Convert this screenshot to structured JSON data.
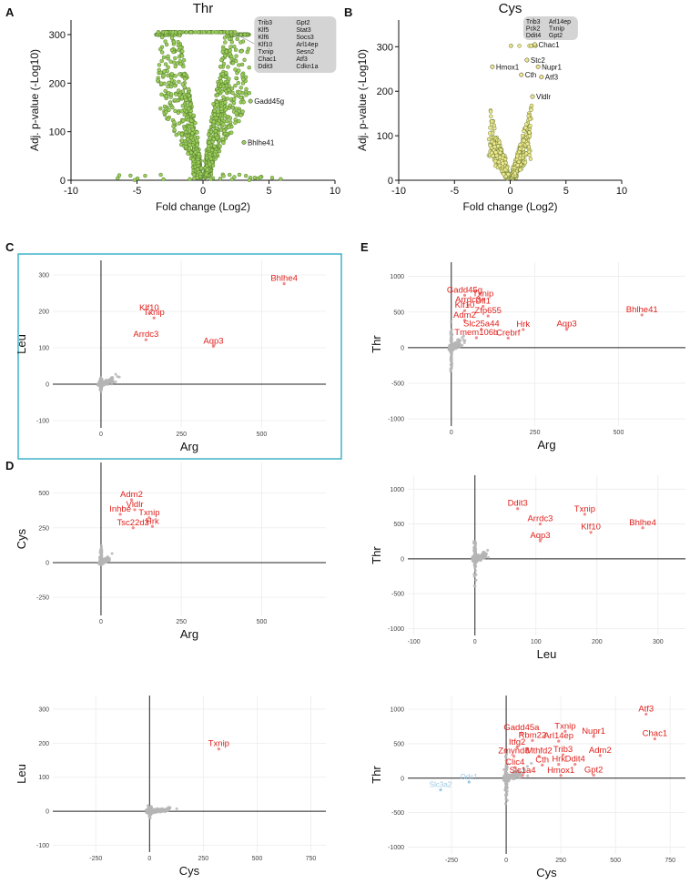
{
  "panels": {
    "A": "A",
    "B": "B",
    "C": "C",
    "D": "D",
    "E": "E"
  },
  "chart_data": [
    {
      "id": "A",
      "type": "scatter",
      "title": "Thr",
      "xlabel": "Fold change (Log2)",
      "ylabel": "Adj. p-value (-Log10)",
      "xlim": [
        -10,
        10
      ],
      "ylim": [
        0,
        330
      ],
      "xticks": [
        "-10",
        "-5",
        "0",
        "5",
        "10"
      ],
      "yticks": [
        "0",
        "100",
        "200",
        "300"
      ],
      "color": "#9acd5a",
      "box_genes": [
        "Trib3",
        "Klf5",
        "Klf6",
        "Klf10",
        "Txnip",
        "Chac1",
        "Ddit3",
        "Gpt2",
        "Stat3",
        "Socs3",
        "Arl14ep",
        "Sesn2",
        "Atf3",
        "Cdkn1a"
      ],
      "annotations": [
        {
          "label": "Gadd45g",
          "x": 3.6,
          "y": 163
        },
        {
          "label": "Bhlhe41",
          "x": 3.1,
          "y": 78
        }
      ]
    },
    {
      "id": "B",
      "type": "scatter",
      "title": "Cys",
      "xlabel": "Fold change (Log2)",
      "ylabel": "Adj. p-value (-Log10)",
      "xlim": [
        -10,
        10
      ],
      "ylim": [
        0,
        360
      ],
      "xticks": [
        "-10",
        "-5",
        "0",
        "5",
        "10"
      ],
      "yticks": [
        "0",
        "100",
        "200",
        "300"
      ],
      "color": "#f0e68c",
      "box_genes": [
        "Trib3",
        "Pck2",
        "Ddit4",
        "Arl14ep",
        "Txnip",
        "Gpt2"
      ],
      "annotations": [
        {
          "label": "Chac1",
          "x": 2.2,
          "y": 305
        },
        {
          "label": "Stc2",
          "x": 1.5,
          "y": 270
        },
        {
          "label": "Hmox1",
          "x": -1.6,
          "y": 255
        },
        {
          "label": "Nupr1",
          "x": 2.5,
          "y": 255
        },
        {
          "label": "Cth",
          "x": 1.0,
          "y": 237
        },
        {
          "label": "Atf3",
          "x": 2.8,
          "y": 232
        },
        {
          "label": "Vldlr",
          "x": 2.0,
          "y": 188
        }
      ]
    },
    {
      "id": "C1",
      "type": "scatter",
      "xlabel": "Arg",
      "ylabel": "Leu",
      "xlim": [
        -150,
        700
      ],
      "ylim": [
        -120,
        340
      ],
      "xticks": [
        "0",
        "250",
        "500"
      ],
      "yticks": [
        "-100",
        "0",
        "100",
        "200",
        "300"
      ],
      "genes": [
        {
          "label": "Bhlhe4",
          "x": 570,
          "y": 276
        },
        {
          "label": "Klf10",
          "x": 150,
          "y": 195
        },
        {
          "label": "Txnip",
          "x": 165,
          "y": 182
        },
        {
          "label": "Arrdc3",
          "x": 140,
          "y": 122
        },
        {
          "label": "Aqp3",
          "x": 350,
          "y": 104
        }
      ]
    },
    {
      "id": "D1",
      "type": "scatter",
      "xlabel": "Arg",
      "ylabel": "Cys",
      "xlim": [
        -150,
        700
      ],
      "ylim": [
        -380,
        720
      ],
      "xticks": [
        "0",
        "250",
        "500"
      ],
      "yticks": [
        "-250",
        "0",
        "250",
        "500"
      ],
      "genes": [
        {
          "label": "Adm2",
          "x": 95,
          "y": 452
        },
        {
          "label": "Vldlr",
          "x": 105,
          "y": 380
        },
        {
          "label": "Inhbe",
          "x": 60,
          "y": 348
        },
        {
          "label": "Txnip",
          "x": 150,
          "y": 322
        },
        {
          "label": "Tsc22d3",
          "x": 100,
          "y": 250
        },
        {
          "label": "Hrk",
          "x": 160,
          "y": 260
        }
      ]
    },
    {
      "id": "D2",
      "type": "scatter",
      "xlabel": "Cys",
      "ylabel": "Leu",
      "xlim": [
        -450,
        820
      ],
      "ylim": [
        -120,
        340
      ],
      "xticks": [
        "-250",
        "0",
        "250",
        "500",
        "750"
      ],
      "yticks": [
        "-100",
        "0",
        "100",
        "200",
        "300"
      ],
      "genes": [
        {
          "label": "Txnip",
          "x": 322,
          "y": 183
        }
      ]
    },
    {
      "id": "E1",
      "type": "scatter",
      "xlabel": "Arg",
      "ylabel": "Thr",
      "xlim": [
        -130,
        700
      ],
      "ylim": [
        -1100,
        1200
      ],
      "xticks": [
        "0",
        "250",
        "500"
      ],
      "yticks": [
        "-1000",
        "-500",
        "0",
        "500",
        "1000"
      ],
      "genes": [
        {
          "label": "Gadd45g",
          "x": 40,
          "y": 735
        },
        {
          "label": "Txnip",
          "x": 95,
          "y": 680
        },
        {
          "label": "Arrdc3",
          "x": 50,
          "y": 600
        },
        {
          "label": "Dll1",
          "x": 95,
          "y": 580
        },
        {
          "label": "Klf10",
          "x": 40,
          "y": 520
        },
        {
          "label": "Zfp655",
          "x": 110,
          "y": 445
        },
        {
          "label": "Bhlhe41",
          "x": 570,
          "y": 460
        },
        {
          "label": "Adm2",
          "x": 40,
          "y": 385
        },
        {
          "label": "Aqp3",
          "x": 345,
          "y": 258
        },
        {
          "label": "Slc25a44",
          "x": 90,
          "y": 260
        },
        {
          "label": "Hrk",
          "x": 215,
          "y": 255
        },
        {
          "label": "Tmem106b",
          "x": 75,
          "y": 140
        },
        {
          "label": "Crebrf",
          "x": 170,
          "y": 135
        }
      ]
    },
    {
      "id": "E2",
      "type": "scatter",
      "xlabel": "Leu",
      "ylabel": "Thr",
      "xlim": [
        -110,
        345
      ],
      "ylim": [
        -1100,
        1200
      ],
      "xticks": [
        "-100",
        "0",
        "100",
        "200",
        "300"
      ],
      "yticks": [
        "-1000",
        "-500",
        "0",
        "500",
        "1000"
      ],
      "genes": [
        {
          "label": "Ddit3",
          "x": 70,
          "y": 720
        },
        {
          "label": "Txnip",
          "x": 180,
          "y": 640
        },
        {
          "label": "Arrdc3",
          "x": 107,
          "y": 500
        },
        {
          "label": "Bhlhe4",
          "x": 275,
          "y": 445
        },
        {
          "label": "Aqp3",
          "x": 107,
          "y": 258
        },
        {
          "label": "Klf10",
          "x": 190,
          "y": 380
        }
      ]
    },
    {
      "id": "E3",
      "type": "scatter",
      "xlabel": "Cys",
      "ylabel": "Thr",
      "xlim": [
        -450,
        820
      ],
      "ylim": [
        -1100,
        1200
      ],
      "xticks": [
        "-250",
        "0",
        "250",
        "500",
        "750"
      ],
      "yticks": [
        "-1000",
        "-500",
        "0",
        "500",
        "1000"
      ],
      "genes": [
        {
          "label": "Atf3",
          "x": 640,
          "y": 930
        },
        {
          "label": "Gadd45a",
          "x": 70,
          "y": 655
        },
        {
          "label": "Txnip",
          "x": 270,
          "y": 680
        },
        {
          "label": "Nupr1",
          "x": 400,
          "y": 605
        },
        {
          "label": "Chac1",
          "x": 680,
          "y": 570
        },
        {
          "label": "Rbm22",
          "x": 120,
          "y": 548
        },
        {
          "label": "Arl14ep",
          "x": 240,
          "y": 538
        },
        {
          "label": "Itfg2",
          "x": 50,
          "y": 448
        },
        {
          "label": "Zmynd8",
          "x": 35,
          "y": 320
        },
        {
          "label": "Mthfd2",
          "x": 150,
          "y": 320
        },
        {
          "label": "Trib3",
          "x": 260,
          "y": 340
        },
        {
          "label": "Adm2",
          "x": 430,
          "y": 330
        },
        {
          "label": "Clic4",
          "x": 40,
          "y": 155
        },
        {
          "label": "Cth",
          "x": 165,
          "y": 190
        },
        {
          "label": "Hrk",
          "x": 240,
          "y": 200
        },
        {
          "label": "Ddit4",
          "x": 315,
          "y": 200
        },
        {
          "label": "Slc1a4",
          "x": 75,
          "y": 40
        },
        {
          "label": "Hmox1",
          "x": 250,
          "y": 40
        },
        {
          "label": "Gpt2",
          "x": 400,
          "y": 45
        }
      ],
      "genes_down": [
        {
          "label": "Odc1",
          "x": -170,
          "y": -55
        },
        {
          "label": "Slc3a2",
          "x": -300,
          "y": -170
        }
      ]
    }
  ]
}
